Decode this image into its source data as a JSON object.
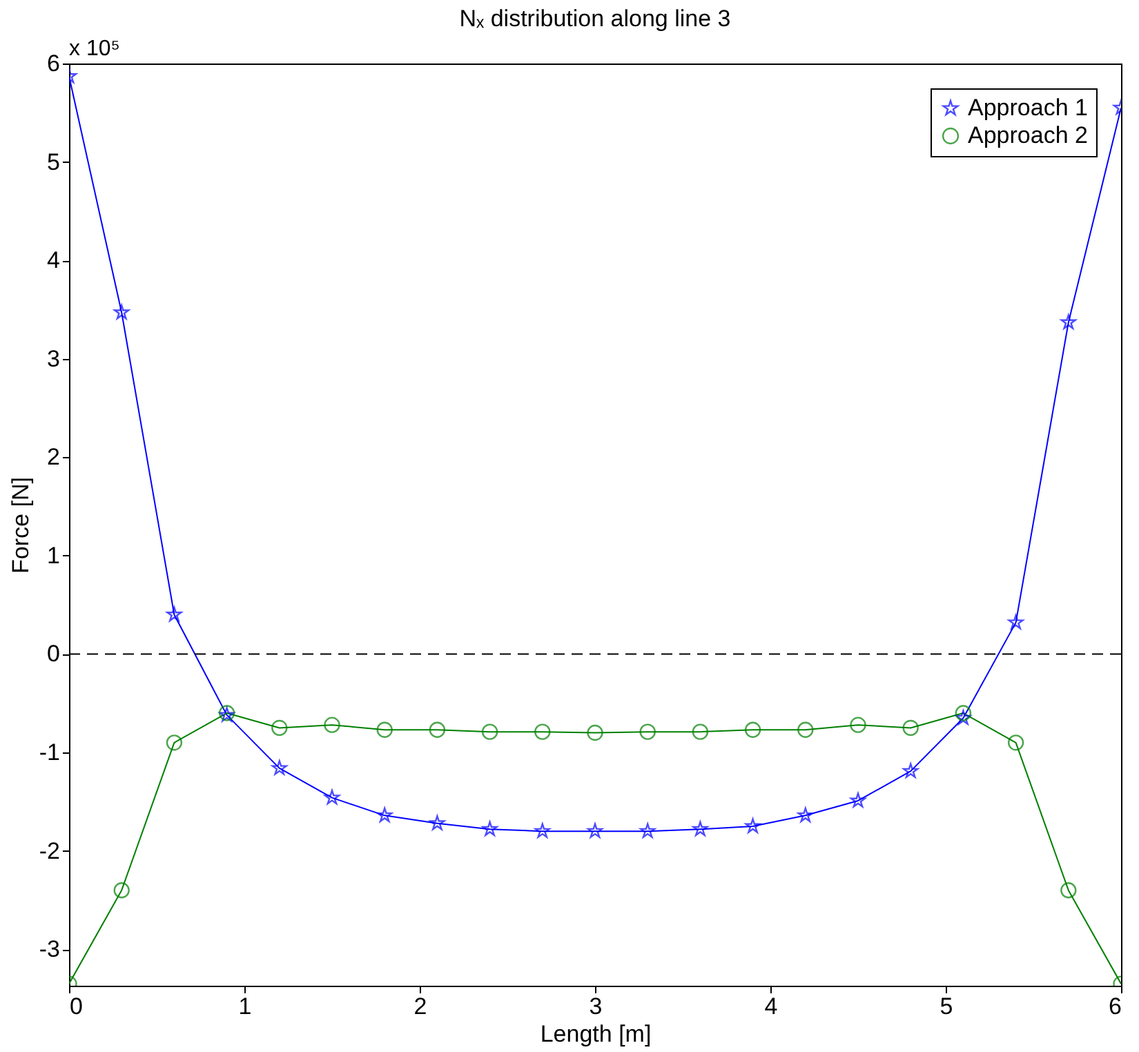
{
  "chart_data": {
    "type": "line",
    "title": "Nₓ distribution along line 3",
    "xlabel": "Length [m]",
    "ylabel": "Force [N]",
    "x": [
      0,
      0.3,
      0.6,
      0.9,
      1.2,
      1.5,
      1.8,
      2.1,
      2.4,
      2.7,
      3.0,
      3.3,
      3.6,
      3.9,
      4.2,
      4.5,
      4.8,
      5.1,
      5.4,
      5.7,
      6.0
    ],
    "series": [
      {
        "name": "Approach 1",
        "color": "#0000ff",
        "marker": "star",
        "values": [
          5.87,
          3.47,
          0.4,
          -0.62,
          -1.16,
          -1.46,
          -1.64,
          -1.72,
          -1.78,
          -1.8,
          -1.8,
          -1.8,
          -1.78,
          -1.75,
          -1.64,
          -1.49,
          -1.19,
          -0.65,
          0.32,
          3.37,
          5.55
        ]
      },
      {
        "name": "Approach 2",
        "color": "#008000",
        "marker": "circle",
        "values": [
          -3.35,
          -2.4,
          -0.9,
          -0.6,
          -0.75,
          -0.72,
          -0.77,
          -0.77,
          -0.79,
          -0.79,
          -0.8,
          -0.79,
          -0.79,
          -0.77,
          -0.77,
          -0.72,
          -0.75,
          -0.6,
          -0.9,
          -2.4,
          -3.35
        ]
      }
    ],
    "xlim": [
      0,
      6
    ],
    "xticks": [
      0,
      1,
      2,
      3,
      4,
      5,
      6
    ],
    "ylim": [
      -3.37,
      6
    ],
    "yticks": [
      -3,
      -2,
      -1,
      0,
      1,
      2,
      3,
      4,
      5,
      6
    ],
    "ref_lines": [
      {
        "axis": "y",
        "value": 0,
        "color": "#000000",
        "line_style": "dashed"
      }
    ],
    "annotations": [
      "x 10⁵"
    ],
    "legend": "top right",
    "grid": false,
    "line_style": "solid"
  }
}
